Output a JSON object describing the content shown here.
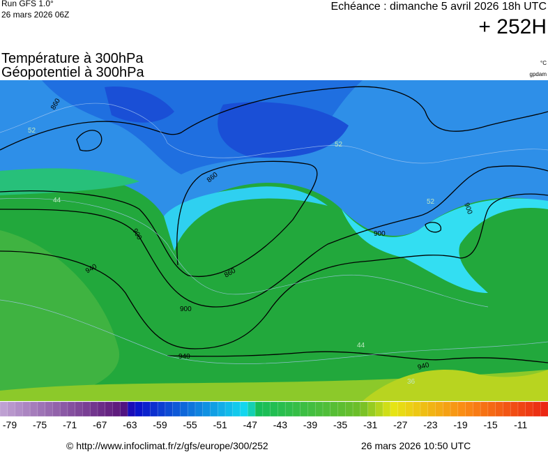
{
  "header": {
    "run": "Run GFS 1.0°",
    "run_date": "26 mars 2026 06Z",
    "valid": "Echéance : dimanche 5 avril 2026 18h UTC",
    "lead": "+ 252H",
    "title_1": "Température à 300hPa",
    "title_2": "Géopotentiel à 300hPa",
    "unit_1": "°C",
    "unit_2": "gpdam"
  },
  "map": {
    "contour_labels": [
      860,
      860,
      860,
      900,
      900,
      900,
      900,
      940,
      940,
      940,
      52,
      52,
      52,
      44,
      44,
      36
    ]
  },
  "colorbar": {
    "labels": [
      -79,
      -75,
      -71,
      -67,
      -63,
      -59,
      -55,
      -51,
      -47,
      -43,
      -39,
      -35,
      -31,
      -27,
      -23,
      -19,
      -15,
      -11
    ]
  },
  "footer": {
    "source": "© http://www.infoclimat.fr/z/gfs/europe/300/252",
    "generated": "26 mars 2026 10:50 UTC"
  }
}
